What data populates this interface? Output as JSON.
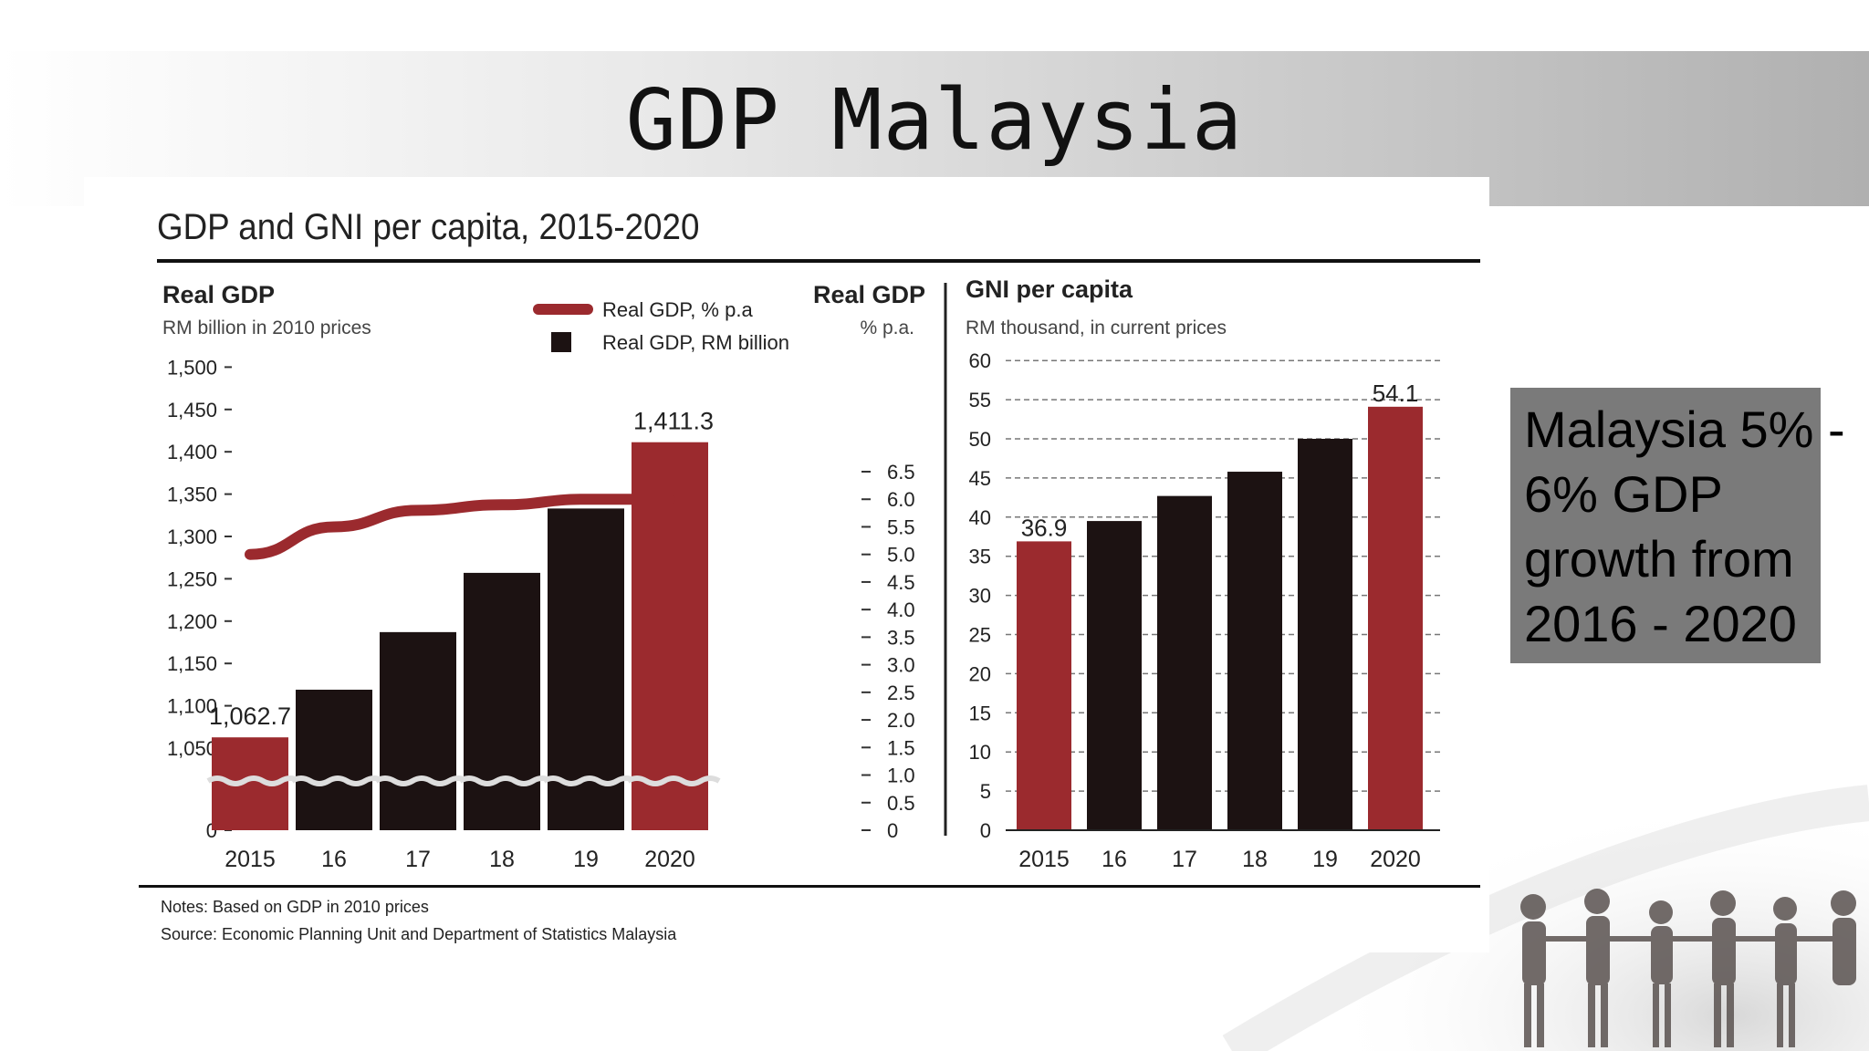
{
  "slide": {
    "title": "GDP Malaysia",
    "callout": "Malaysia 5% - 6% GDP growth from 2016 - 2020",
    "colors": {
      "accent_red": "#9b2a2e",
      "bar_black": "#1c1212",
      "callout_bg": "#7a7a7a"
    }
  },
  "chart_data": [
    {
      "type": "bar",
      "figure_title": "GDP and GNI per capita, 2015-2020",
      "title": "Real GDP",
      "subtitle": "RM billion in 2010 prices",
      "right_axis_title": "Real GDP",
      "right_axis_subtitle": "% p.a.",
      "categories": [
        "2015",
        "16",
        "17",
        "18",
        "19",
        "2020"
      ],
      "yticks": [
        "0",
        "1,050",
        "1,100",
        "1,150",
        "1,200",
        "1,250",
        "1,300",
        "1,350",
        "1,400",
        "1,450",
        "1,500"
      ],
      "ylim": [
        1000,
        1500
      ],
      "y2ticks": [
        "0",
        "0.5",
        "1.0",
        "1.5",
        "2.0",
        "2.5",
        "3.0",
        "3.5",
        "4.0",
        "4.5",
        "5.0",
        "5.5",
        "6.0",
        "6.5"
      ],
      "y2lim": [
        0,
        6.5
      ],
      "axis_break": true,
      "series": [
        {
          "name": "Real GDP, RM billion",
          "type": "bar",
          "values": [
            1062.7,
            1119,
            1187,
            1257,
            1333,
            1411.3
          ]
        },
        {
          "name": "Real GDP, % p.a",
          "type": "line",
          "axis": "right",
          "values": [
            5.0,
            5.5,
            5.8,
            5.9,
            6.0,
            6.0
          ]
        }
      ],
      "highlight_indices": [
        0,
        5
      ],
      "data_labels": [
        {
          "index": 0,
          "text": "1,062.7"
        },
        {
          "index": 5,
          "text": "1,411.3"
        }
      ],
      "legend": {
        "position": "top-center",
        "entries": [
          "Real GDP, % p.a",
          "Real GDP, RM billion"
        ]
      }
    },
    {
      "type": "bar",
      "title": "GNI per capita",
      "subtitle": "RM thousand, in current prices",
      "categories": [
        "2015",
        "16",
        "17",
        "18",
        "19",
        "2020"
      ],
      "yticks": [
        "0",
        "5",
        "10",
        "15",
        "20",
        "25",
        "30",
        "35",
        "40",
        "45",
        "50",
        "55",
        "60"
      ],
      "ylim": [
        0,
        60
      ],
      "grid": true,
      "series": [
        {
          "values": [
            36.9,
            39.5,
            42.7,
            45.8,
            50.0,
            54.1
          ]
        }
      ],
      "highlight_indices": [
        0,
        5
      ],
      "data_labels": [
        {
          "index": 0,
          "text": "36.9"
        },
        {
          "index": 5,
          "text": "54.1"
        }
      ]
    }
  ],
  "notes": {
    "note": "Notes: Based on GDP in 2010 prices",
    "source": "Source: Economic Planning Unit and Department of Statistics Malaysia"
  }
}
